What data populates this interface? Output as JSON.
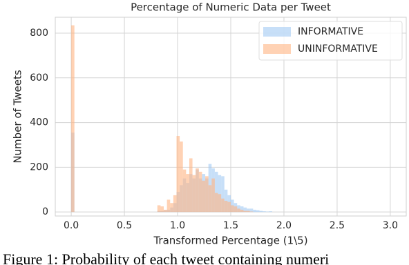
{
  "chart_data": {
    "type": "histogram",
    "title": "Percentage of Numeric Data per Tweet",
    "x_label": "Transformed Percentage (1\\5)",
    "y_label": "Number of Tweets",
    "bins": [
      0,
      0.03,
      0.06,
      0.09,
      0.12,
      0.15,
      0.18,
      0.21,
      0.24,
      0.27,
      0.3,
      0.33,
      0.36,
      0.39,
      0.42,
      0.45,
      0.48,
      0.51,
      0.54,
      0.57,
      0.6,
      0.63,
      0.66,
      0.69,
      0.72,
      0.75,
      0.78,
      0.81,
      0.84,
      0.87,
      0.9,
      0.93,
      0.96,
      0.99,
      1.02,
      1.05,
      1.08,
      1.11,
      1.14,
      1.17,
      1.2,
      1.23,
      1.26,
      1.29,
      1.32,
      1.35,
      1.38,
      1.41,
      1.44,
      1.47,
      1.5,
      1.53,
      1.56,
      1.59,
      1.62,
      1.65,
      1.68,
      1.71,
      1.74,
      1.77,
      1.8,
      1.83,
      1.86,
      1.89,
      1.92,
      1.95
    ],
    "series": [
      {
        "name": "INFORMATIVE",
        "color": "#a1c9f4",
        "values": [
          355,
          0,
          0,
          0,
          0,
          0,
          0,
          0,
          0,
          0,
          0,
          0,
          0,
          0,
          0,
          0,
          0,
          0,
          0,
          0,
          0,
          0,
          0,
          0,
          0,
          0,
          0,
          5,
          5,
          8,
          10,
          20,
          40,
          90,
          120,
          150,
          130,
          170,
          150,
          190,
          150,
          170,
          150,
          215,
          195,
          180,
          165,
          160,
          100,
          75,
          55,
          40,
          30,
          25,
          20,
          15,
          15,
          10,
          8,
          5,
          3,
          2,
          3,
          0,
          0
        ]
      },
      {
        "name": "UNINFORMATIVE",
        "color": "#ffb482",
        "values": [
          835,
          0,
          0,
          0,
          0,
          0,
          0,
          0,
          0,
          0,
          0,
          0,
          0,
          0,
          0,
          0,
          0,
          0,
          0,
          0,
          0,
          0,
          0,
          0,
          0,
          0,
          0,
          30,
          25,
          10,
          55,
          40,
          75,
          340,
          315,
          190,
          170,
          240,
          165,
          195,
          180,
          140,
          160,
          120,
          150,
          85,
          80,
          60,
          50,
          45,
          30,
          25,
          15,
          10,
          5,
          5,
          2,
          0,
          0,
          0,
          0,
          0,
          0,
          0,
          0
        ]
      }
    ],
    "xlim": [
      -0.15,
      3.15
    ],
    "ylim": [
      -18,
      871
    ],
    "xticks": [
      {
        "value": 0,
        "label": "0.0"
      },
      0.5,
      {
        "value": 1,
        "label": "1.0"
      },
      1.5,
      {
        "value": 2,
        "label": "2.0"
      },
      2.5,
      {
        "value": 3,
        "label": "3.0"
      }
    ],
    "yticks": [
      0,
      200,
      400,
      600,
      800
    ],
    "grid": true,
    "legend": "upper right"
  },
  "caption": "Figure 1:  Probability  of  each  tweet  containing  numeri"
}
